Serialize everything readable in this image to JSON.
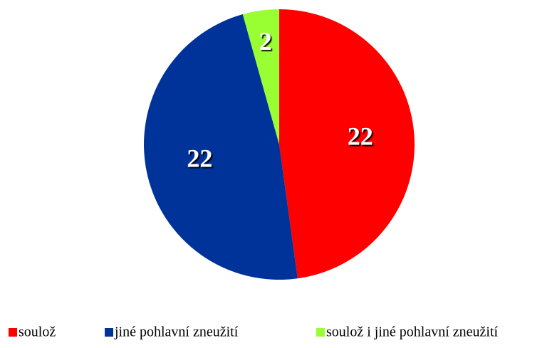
{
  "chart_data": {
    "type": "pie",
    "categories": [
      "soulož",
      "jiné pohlavní zneužití",
      "soulož i jiné pohlavní zneužití"
    ],
    "values": [
      22,
      22,
      2
    ],
    "colors": [
      "#ff0000",
      "#003399",
      "#99ff33"
    ],
    "legend": "bottom"
  }
}
